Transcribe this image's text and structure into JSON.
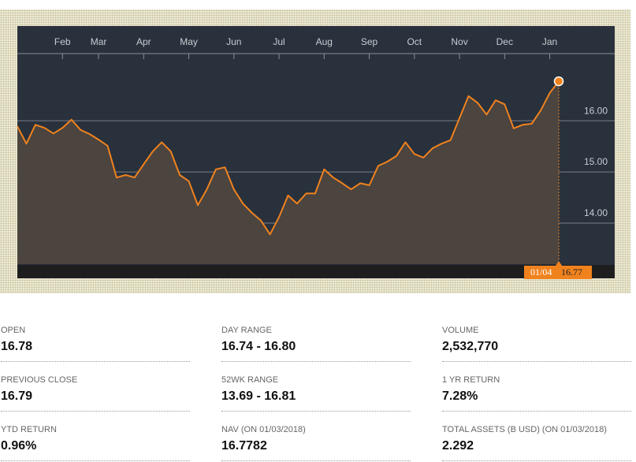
{
  "chart_data": {
    "type": "line",
    "categories": [
      null,
      null,
      null,
      null,
      null,
      "Feb",
      null,
      null,
      null,
      "Mar",
      null,
      null,
      null,
      null,
      "Apr",
      null,
      null,
      null,
      null,
      "May",
      null,
      null,
      null,
      null,
      "Jun",
      null,
      null,
      null,
      null,
      "Jul",
      null,
      null,
      null,
      null,
      "Aug",
      null,
      null,
      null,
      null,
      "Sep",
      null,
      null,
      null,
      null,
      "Oct",
      null,
      null,
      null,
      null,
      "Nov",
      null,
      null,
      null,
      null,
      "Dec",
      null,
      null,
      null,
      null,
      "Jan",
      null
    ],
    "series": [
      {
        "color": "#f0821e",
        "values": [
          15.89,
          15.55,
          15.92,
          15.86,
          15.75,
          15.86,
          16.02,
          15.82,
          15.74,
          15.63,
          15.51,
          14.89,
          14.94,
          14.89,
          15.15,
          15.4,
          15.58,
          15.4,
          14.94,
          14.82,
          14.35,
          14.66,
          15.05,
          15.09,
          14.66,
          14.38,
          14.2,
          14.05,
          13.78,
          14.12,
          14.54,
          14.38,
          14.58,
          14.58,
          15.05,
          14.89,
          14.78,
          14.66,
          14.78,
          14.74,
          15.12,
          15.2,
          15.31,
          15.58,
          15.35,
          15.28,
          15.46,
          15.55,
          15.62,
          16.05,
          16.48,
          16.35,
          16.12,
          16.4,
          16.32,
          15.85,
          15.92,
          15.94,
          16.2,
          16.54,
          16.77
        ]
      }
    ],
    "ylim": [
      13.2,
      17.31
    ],
    "yticks": [
      {
        "value": 14,
        "label": "14.00"
      },
      {
        "value": 15,
        "label": "15.00"
      },
      {
        "value": 16,
        "label": "16.00"
      }
    ],
    "grid": true,
    "marker_date": "01/04"
  },
  "stats": [
    {
      "label": "OPEN",
      "value": "16.78"
    },
    {
      "label": "DAY RANGE",
      "value": "16.74 - 16.80"
    },
    {
      "label": "VOLUME",
      "value": "2,532,770"
    },
    {
      "label": "PREVIOUS CLOSE",
      "value": "16.79"
    },
    {
      "label": "52WK RANGE",
      "value": "13.69 - 16.81"
    },
    {
      "label": "1 YR RETURN",
      "value": "7.28%"
    },
    {
      "label": "YTD RETURN",
      "value": "0.96%"
    },
    {
      "label": "NAV (ON 01/03/2018)",
      "value": "16.7782"
    },
    {
      "label": "TOTAL ASSETS (B USD) (ON 01/03/2018)",
      "value": "2.292"
    }
  ]
}
